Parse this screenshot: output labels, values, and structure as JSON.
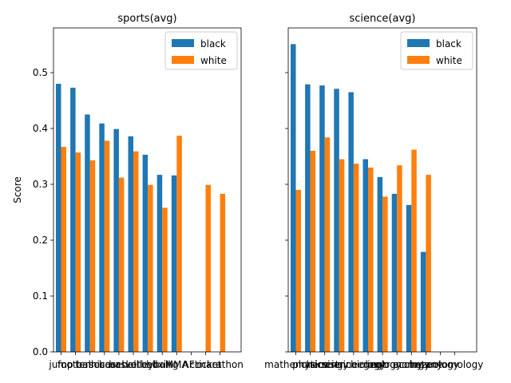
{
  "chart_data": [
    {
      "type": "bar",
      "title": "sports(avg)",
      "xlabel": "",
      "ylabel": "Score",
      "ylim": [
        0,
        0.58
      ],
      "yticks": [
        0.0,
        0.1,
        0.2,
        0.3,
        0.4,
        0.5
      ],
      "ytick_labels": [
        "0.0",
        "0.1",
        "0.2",
        "0.3",
        "0.4",
        "0.5"
      ],
      "categories": [
        "jump",
        "football",
        "tennis",
        "soccer",
        "baseball",
        "basketball",
        "volleyball",
        "boxing",
        "MMA",
        "AFL",
        "cricket",
        "marathon"
      ],
      "series": [
        {
          "name": "black",
          "color": "#1f77b4",
          "values": [
            0.48,
            0.473,
            0.425,
            0.409,
            0.399,
            0.386,
            0.353,
            0.317,
            0.316,
            null,
            null,
            null
          ]
        },
        {
          "name": "white",
          "color": "#ff7f0e",
          "values": [
            0.367,
            0.357,
            0.343,
            0.378,
            0.312,
            0.359,
            0.299,
            0.258,
            0.387,
            null,
            0.299,
            0.283
          ]
        }
      ],
      "legend": "top-right",
      "grid": false
    },
    {
      "type": "bar",
      "title": "science(avg)",
      "xlabel": "",
      "ylabel": "",
      "ylim": [
        0,
        0.58
      ],
      "yticks": [
        0.0,
        0.1,
        0.2,
        0.3,
        0.4,
        0.5
      ],
      "ytick_labels": [
        "",
        "",
        "",
        "",
        "",
        ""
      ],
      "categories": [
        "mathematics",
        "physics",
        "chemistry",
        "science",
        "engineering",
        "biology",
        "geology",
        "astronomy",
        "ecology",
        "botany",
        "zoology",
        "entomology"
      ],
      "series": [
        {
          "name": "black",
          "color": "#1f77b4",
          "values": [
            0.551,
            0.479,
            0.477,
            0.471,
            0.465,
            0.345,
            0.313,
            0.283,
            0.263,
            0.179,
            null,
            null
          ]
        },
        {
          "name": "white",
          "color": "#ff7f0e",
          "values": [
            0.29,
            0.36,
            0.384,
            0.345,
            0.337,
            0.33,
            0.278,
            0.334,
            0.362,
            0.317,
            null,
            null
          ]
        }
      ],
      "legend": "top-right",
      "grid": false
    }
  ]
}
